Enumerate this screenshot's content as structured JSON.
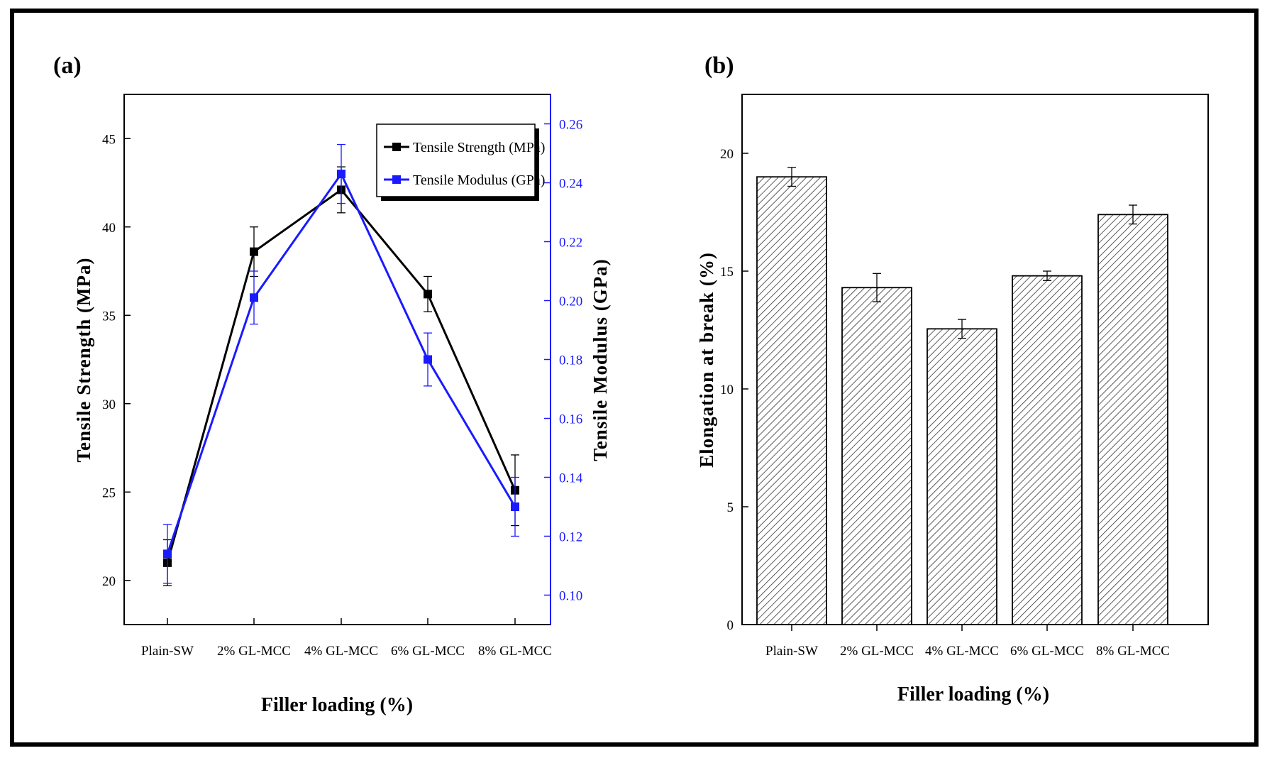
{
  "panels": {
    "a": {
      "label": "(a)"
    },
    "b": {
      "label": "(b)"
    }
  },
  "colors": {
    "strength": "#000000",
    "modulus": "#1a1aff"
  },
  "chart_data": [
    {
      "type": "line",
      "panel": "(a)",
      "categories": [
        "Plain-SW",
        "2% GL-MCC",
        "4% GL-MCC",
        "6% GL-MCC",
        "8% GL-MCC"
      ],
      "xlabel": "Filler loading (%)",
      "ylabel": "Tensile Strength (MPa)",
      "y2label": "Tensile Modulus (GPa)",
      "ylim": [
        17.5,
        47.5
      ],
      "y2lim": [
        0.09,
        0.27
      ],
      "yticks": [
        "20",
        "25",
        "30",
        "35",
        "40",
        "45"
      ],
      "y2ticks": [
        "0.10",
        "0.12",
        "0.14",
        "0.16",
        "0.18",
        "0.20",
        "0.22",
        "0.24",
        "0.26"
      ],
      "legend_position": "top-right",
      "series": [
        {
          "name": "Tensile Strength (MPa)",
          "axis": "left",
          "values": [
            21.0,
            38.6,
            42.1,
            36.2,
            25.1
          ],
          "errors": [
            1.3,
            1.4,
            1.3,
            1.0,
            2.0
          ]
        },
        {
          "name": "Tensile Modulus (GPa)",
          "axis": "right",
          "values": [
            0.114,
            0.201,
            0.243,
            0.18,
            0.13
          ],
          "errors": [
            0.01,
            0.009,
            0.01,
            0.009,
            0.01
          ]
        }
      ]
    },
    {
      "type": "bar",
      "panel": "(b)",
      "categories": [
        "Plain-SW",
        "2% GL-MCC",
        "4% GL-MCC",
        "6% GL-MCC",
        "8% GL-MCC"
      ],
      "values": [
        19.0,
        14.3,
        12.55,
        14.8,
        17.4
      ],
      "errors": [
        0.4,
        0.6,
        0.4,
        0.2,
        0.4
      ],
      "xlabel": "Filler loading (%)",
      "ylabel": "Elongation at break (%)",
      "ylim": [
        0,
        22.5
      ],
      "yticks": [
        "0",
        "5",
        "10",
        "15",
        "20"
      ]
    }
  ]
}
